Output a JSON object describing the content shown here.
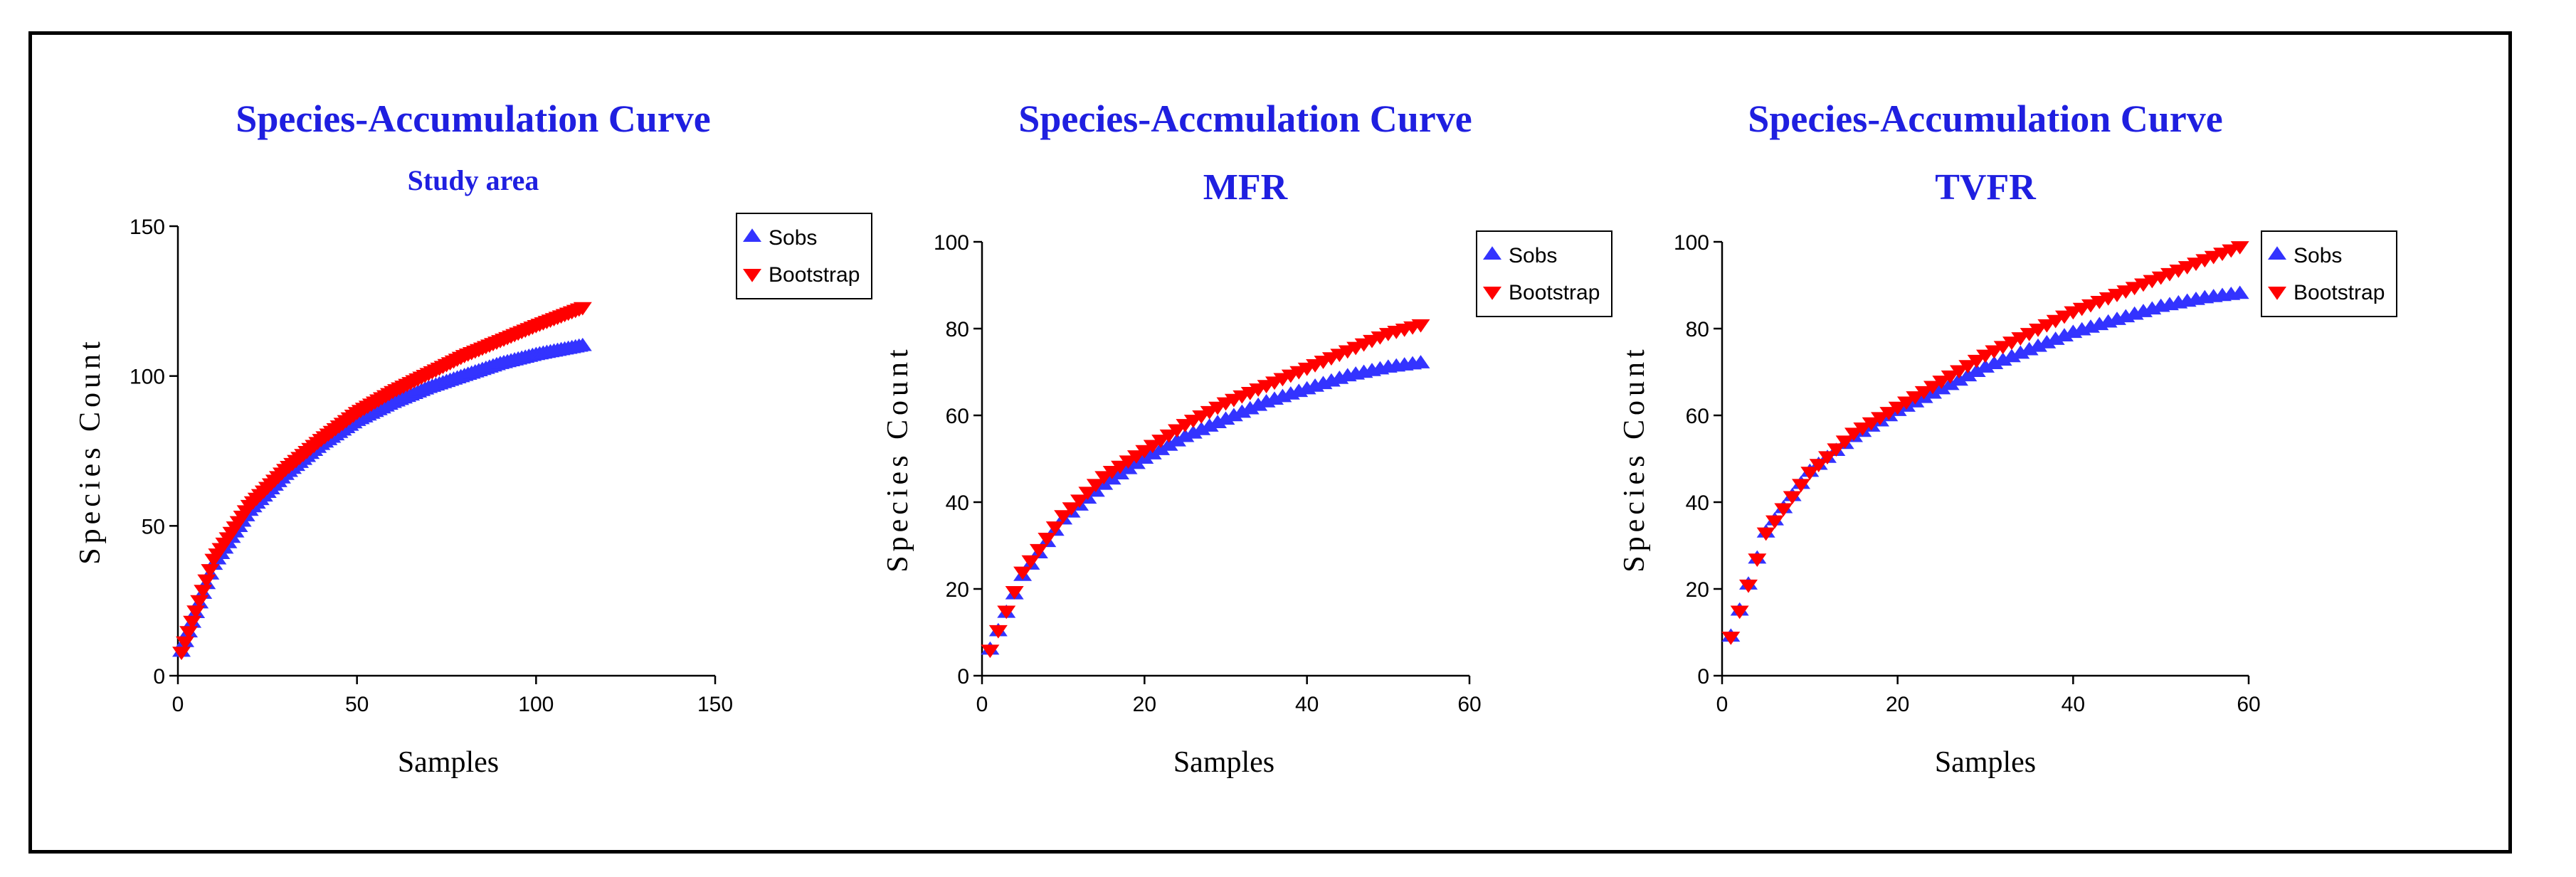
{
  "chart_data": [
    {
      "type": "scatter",
      "title": "Species-Accumulation Curve",
      "subtitle": "Study area",
      "xlabel": "Samples",
      "ylabel": "Species Count",
      "xlim": [
        0,
        150
      ],
      "ylim": [
        0,
        150
      ],
      "xticks": [
        "0",
        "50",
        "100",
        "150"
      ],
      "yticks": [
        "0",
        "50",
        "100",
        "150"
      ],
      "legend": [
        "Sobs",
        "Bootstrap"
      ],
      "legend_position": "top-right",
      "x_max_sample": 113,
      "series": [
        {
          "name": "Sobs",
          "marker": "triangle-up",
          "color": "#3333ff",
          "points": [
            [
              1,
              8
            ],
            [
              10,
              37
            ],
            [
              20,
              55
            ],
            [
              30,
              67
            ],
            [
              40,
              77
            ],
            [
              50,
              85
            ],
            [
              60,
              91
            ],
            [
              70,
              96
            ],
            [
              80,
              100
            ],
            [
              90,
              104
            ],
            [
              100,
              107
            ],
            [
              113,
              110
            ]
          ]
        },
        {
          "name": "Bootstrap",
          "marker": "triangle-down",
          "color": "#ff0000",
          "points": [
            [
              1,
              8
            ],
            [
              10,
              39
            ],
            [
              20,
              57
            ],
            [
              30,
              69
            ],
            [
              40,
              79
            ],
            [
              50,
              88
            ],
            [
              60,
              95
            ],
            [
              70,
              101
            ],
            [
              80,
              107
            ],
            [
              90,
              112
            ],
            [
              100,
              117
            ],
            [
              113,
              123
            ]
          ]
        }
      ]
    },
    {
      "type": "scatter",
      "title": "Species-Accmulation Curve",
      "subtitle": "MFR",
      "xlabel": "Samples",
      "ylabel": "Species Count",
      "xlim": [
        0,
        60
      ],
      "ylim": [
        0,
        100
      ],
      "xticks": [
        "0",
        "20",
        "40",
        "60"
      ],
      "yticks": [
        "0",
        "20",
        "40",
        "60",
        "80",
        "100"
      ],
      "legend": [
        "Sobs",
        "Bootstrap"
      ],
      "legend_position": "top-right",
      "x_max_sample": 54,
      "series": [
        {
          "name": "Sobs",
          "marker": "triangle-up",
          "color": "#3333ff",
          "points": [
            [
              1,
              6
            ],
            [
              5,
              23
            ],
            [
              10,
              36
            ],
            [
              15,
              44
            ],
            [
              20,
              50
            ],
            [
              25,
              55
            ],
            [
              30,
              59
            ],
            [
              35,
              63
            ],
            [
              40,
              66
            ],
            [
              45,
              69
            ],
            [
              50,
              71
            ],
            [
              54,
              72
            ]
          ]
        },
        {
          "name": "Bootstrap",
          "marker": "triangle-down",
          "color": "#ff0000",
          "points": [
            [
              1,
              6
            ],
            [
              5,
              24
            ],
            [
              10,
              37
            ],
            [
              15,
              46
            ],
            [
              20,
              52
            ],
            [
              25,
              58
            ],
            [
              30,
              63
            ],
            [
              35,
              67
            ],
            [
              40,
              71
            ],
            [
              45,
              75
            ],
            [
              50,
              79
            ],
            [
              54,
              81
            ]
          ]
        }
      ]
    },
    {
      "type": "scatter",
      "title": "Species-Accumulation Curve",
      "subtitle": "TVFR",
      "xlabel": "Samples",
      "ylabel": "Species Count",
      "xlim": [
        0,
        60
      ],
      "ylim": [
        0,
        100
      ],
      "xticks": [
        "0",
        "20",
        "40",
        "60"
      ],
      "yticks": [
        "0",
        "20",
        "40",
        "60",
        "80",
        "100"
      ],
      "legend": [
        "Sobs",
        "Bootstrap"
      ],
      "legend_position": "top-right",
      "x_max_sample": 59,
      "series": [
        {
          "name": "Sobs",
          "marker": "triangle-up",
          "color": "#3333ff",
          "points": [
            [
              1,
              9
            ],
            [
              5,
              33
            ],
            [
              10,
              47
            ],
            [
              15,
              55
            ],
            [
              20,
              61
            ],
            [
              25,
              66
            ],
            [
              30,
              71
            ],
            [
              35,
              75
            ],
            [
              40,
              79
            ],
            [
              45,
              82
            ],
            [
              50,
              85
            ],
            [
              55,
              87
            ],
            [
              59,
              88
            ]
          ]
        },
        {
          "name": "Bootstrap",
          "marker": "triangle-down",
          "color": "#ff0000",
          "points": [
            [
              1,
              9
            ],
            [
              5,
              33
            ],
            [
              10,
              47
            ],
            [
              15,
              56
            ],
            [
              20,
              62
            ],
            [
              25,
              68
            ],
            [
              30,
              74
            ],
            [
              35,
              79
            ],
            [
              40,
              84
            ],
            [
              45,
              88
            ],
            [
              50,
              92
            ],
            [
              55,
              96
            ],
            [
              59,
              99
            ]
          ]
        }
      ]
    }
  ]
}
